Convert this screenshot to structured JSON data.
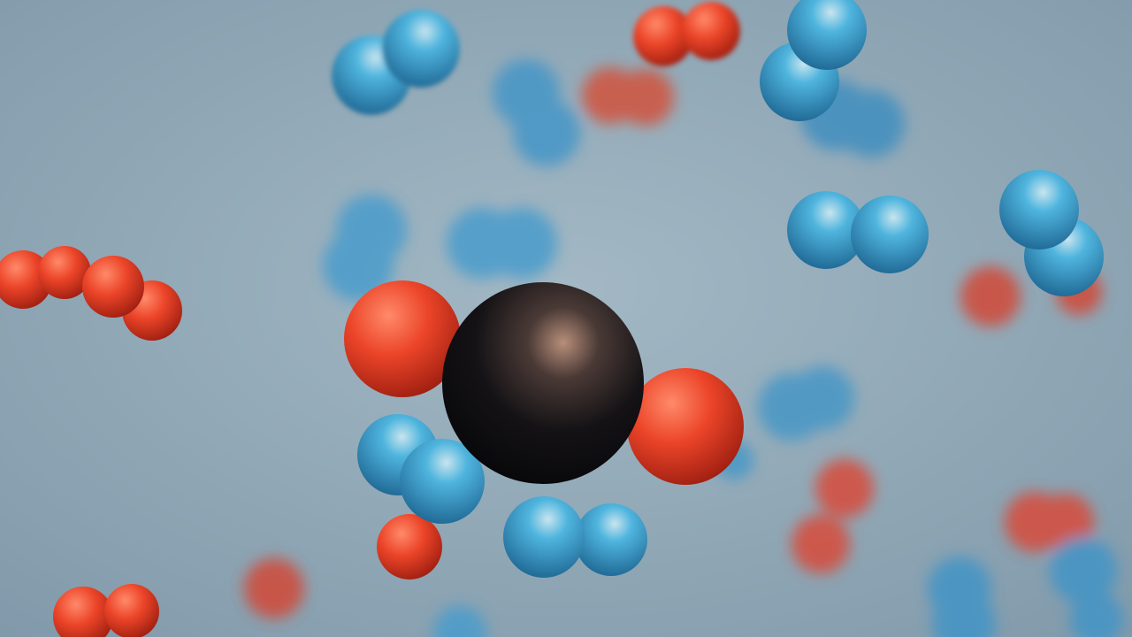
{
  "scene": {
    "subject": "molecules",
    "colors": {
      "background_center": "#a3b8c4",
      "background_edge": "#7e97a8",
      "carbon": "#151416",
      "oxygen": "#e8402a",
      "hydrogen": "#3aa6d6"
    }
  }
}
